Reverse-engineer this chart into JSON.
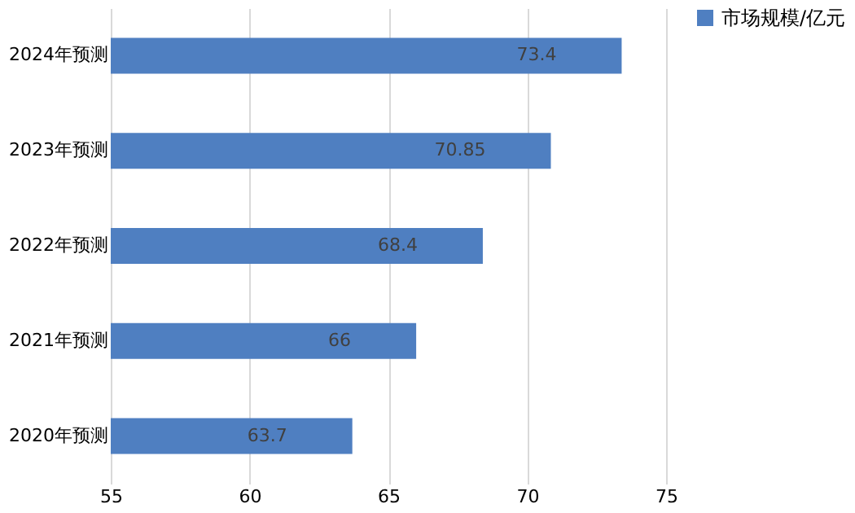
{
  "chart_data": {
    "type": "bar",
    "orientation": "horizontal",
    "categories": [
      "2024年预测",
      "2023年预测",
      "2022年预测",
      "2021年预测",
      "2020年预测"
    ],
    "series": [
      {
        "name": "市场规模/亿元",
        "color": "#4f7fc1",
        "values": [
          73.4,
          70.85,
          68.4,
          66,
          63.7
        ]
      }
    ],
    "xlim": [
      55,
      75
    ],
    "xticks": [
      55,
      60,
      65,
      70,
      75
    ],
    "grid": "x",
    "legend": "right",
    "data_labels": true
  }
}
